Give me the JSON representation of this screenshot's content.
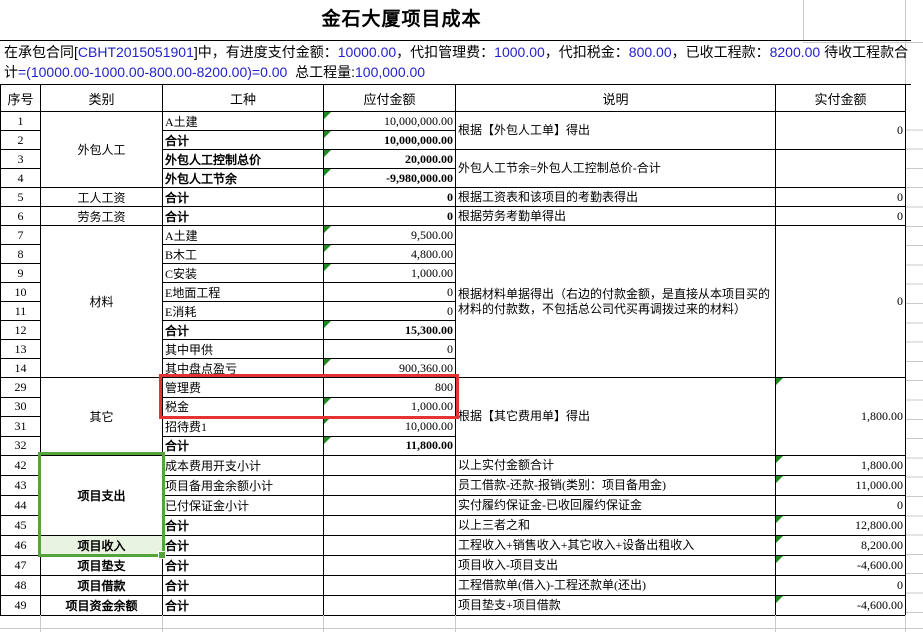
{
  "title": "金石大厦项目成本",
  "info": {
    "segments": [
      {
        "t": "在承包合同[",
        "c": "black"
      },
      {
        "t": "CBHT2015051901",
        "c": "blue"
      },
      {
        "t": "]中，有进度支付金额：",
        "c": "black"
      },
      {
        "t": "10000.00",
        "c": "blue"
      },
      {
        "t": "，代扣管理费：",
        "c": "black"
      },
      {
        "t": "1000.00",
        "c": "blue"
      },
      {
        "t": "，代扣税金：",
        "c": "black"
      },
      {
        "t": "800.00",
        "c": "blue"
      },
      {
        "t": "，已收工程款：",
        "c": "black"
      },
      {
        "t": "8200.00",
        "c": "blue"
      },
      {
        "t": " 待收工程款合计",
        "c": "black"
      },
      {
        "t": "=(10000.00-1000.00-800.00-8200.00)=0.00",
        "c": "blue"
      },
      {
        "t": "  总工程量:",
        "c": "black"
      },
      {
        "t": "100,000.00",
        "c": "blue"
      }
    ]
  },
  "table": {
    "headers": [
      "序号",
      "类别",
      "工种",
      "应付金额",
      "说明",
      "实付金额"
    ],
    "rows": [
      {
        "num": "1",
        "cat": {
          "t": "外包人工",
          "span": 4
        },
        "job": {
          "t": "A土建"
        },
        "amt": {
          "t": "10,000,000.00",
          "tri": true
        },
        "note": {
          "t": "根据【外包人工单】得出",
          "span": 2
        },
        "paid": {
          "t": "0",
          "span": 2
        }
      },
      {
        "num": "2",
        "job": {
          "t": "合计",
          "b": true
        },
        "amt": {
          "t": "10,000,000.00",
          "b": true,
          "tri": true
        }
      },
      {
        "num": "3",
        "job": {
          "t": "外包人工控制总价",
          "b": true
        },
        "amt": {
          "t": "20,000.00",
          "b": true,
          "tri": true
        },
        "note": {
          "t": "外包人工节余=外包人工控制总价-合计",
          "span": 2
        },
        "paid": {
          "t": "",
          "span": 2
        }
      },
      {
        "num": "4",
        "job": {
          "t": "外包人工节余",
          "b": true
        },
        "amt": {
          "t": "-9,980,000.00",
          "b": true,
          "tri": true
        }
      },
      {
        "num": "5",
        "cat": {
          "t": "工人工资"
        },
        "job": {
          "t": "合计",
          "b": true
        },
        "amt": {
          "t": "0",
          "b": true
        },
        "note": {
          "t": "根据工资表和该项目的考勤表得出"
        },
        "paid": {
          "t": "0"
        }
      },
      {
        "num": "6",
        "cat": {
          "t": "劳务工资"
        },
        "job": {
          "t": "合计",
          "b": true
        },
        "amt": {
          "t": "0",
          "b": true
        },
        "note": {
          "t": "根据劳务考勤单得出"
        },
        "paid": {
          "t": "0"
        }
      },
      {
        "num": "7",
        "cat": {
          "t": "材料",
          "span": 8
        },
        "job": {
          "t": "A土建"
        },
        "amt": {
          "t": "9,500.00",
          "tri": true
        },
        "note": {
          "t": "根据材料单据得出（右边的付款金额，是直接从本项目买的材料的付款数，不包括总公司代买再调拨过来的材料）",
          "span": 8
        },
        "paid": {
          "t": "0",
          "span": 8
        }
      },
      {
        "num": "8",
        "job": {
          "t": "B木工"
        },
        "amt": {
          "t": "4,800.00",
          "tri": true
        }
      },
      {
        "num": "9",
        "job": {
          "t": "C安装"
        },
        "amt": {
          "t": "1,000.00",
          "tri": true
        }
      },
      {
        "num": "10",
        "job": {
          "t": "E地面工程"
        },
        "amt": {
          "t": "0"
        }
      },
      {
        "num": "11",
        "job": {
          "t": "E消耗"
        },
        "amt": {
          "t": "0"
        }
      },
      {
        "num": "12",
        "job": {
          "t": "合计",
          "b": true
        },
        "amt": {
          "t": "15,300.00",
          "b": true,
          "tri": true
        }
      },
      {
        "num": "13",
        "job": {
          "t": "其中甲供"
        },
        "amt": {
          "t": "0"
        }
      },
      {
        "num": "14",
        "job": {
          "t": "其中盘点盈亏"
        },
        "amt": {
          "t": "900,360.00",
          "tri": true
        }
      },
      {
        "num": "29",
        "cat": {
          "t": "其它",
          "span": 4
        },
        "job": {
          "t": "管理费"
        },
        "amt": {
          "t": "800"
        },
        "note": {
          "t": "根据【其它费用单】得出",
          "span": 4
        },
        "paid": {
          "t": "1,800.00",
          "span": 4,
          "tri": true
        }
      },
      {
        "num": "30",
        "job": {
          "t": "税金"
        },
        "amt": {
          "t": "1,000.00",
          "tri": true
        }
      },
      {
        "num": "31",
        "job": {
          "t": "招待费1"
        },
        "amt": {
          "t": "10,000.00",
          "tri": true
        }
      },
      {
        "num": "32",
        "job": {
          "t": "合计",
          "b": true
        },
        "amt": {
          "t": "11,800.00",
          "b": true,
          "tri": true
        }
      },
      {
        "num": "42",
        "cat": {
          "t": "项目支出",
          "span": 4,
          "b": true
        },
        "job": {
          "t": "成本费用开支小计"
        },
        "amt": {
          "t": ""
        },
        "note": {
          "t": "以上实付金额合计"
        },
        "paid": {
          "t": "1,800.00",
          "tri": true
        }
      },
      {
        "num": "43",
        "job": {
          "t": "项目备用金余额小计"
        },
        "amt": {
          "t": ""
        },
        "note": {
          "t": "员工借款-还款-报销(类别：项目备用金)"
        },
        "paid": {
          "t": "11,000.00",
          "tri": true
        }
      },
      {
        "num": "44",
        "job": {
          "t": "已付保证金小计"
        },
        "amt": {
          "t": ""
        },
        "note": {
          "t": "实付履约保证金-已收回履约保证金"
        },
        "paid": {
          "t": "0"
        }
      },
      {
        "num": "45",
        "job": {
          "t": "合计",
          "b": true
        },
        "amt": {
          "t": ""
        },
        "note": {
          "t": "以上三者之和"
        },
        "paid": {
          "t": "12,800.00",
          "tri": true
        }
      },
      {
        "num": "46",
        "cat": {
          "t": "项目收入",
          "b": true,
          "fill": true
        },
        "job": {
          "t": "合计",
          "b": true
        },
        "amt": {
          "t": ""
        },
        "note": {
          "t": "工程收入+销售收入+其它收入+设备出租收入"
        },
        "paid": {
          "t": "8,200.00",
          "tri": true
        }
      },
      {
        "num": "47",
        "cat": {
          "t": "项目垫支",
          "b": true
        },
        "job": {
          "t": "合计",
          "b": true
        },
        "amt": {
          "t": ""
        },
        "note": {
          "t": "项目收入-项目支出"
        },
        "paid": {
          "t": "-4,600.00",
          "tri": true
        }
      },
      {
        "num": "48",
        "cat": {
          "t": "项目借款",
          "b": true
        },
        "job": {
          "t": "合计",
          "b": true
        },
        "amt": {
          "t": ""
        },
        "note": {
          "t": "工程借款单(借入)-工程还款单(还出)"
        },
        "paid": {
          "t": "0"
        }
      },
      {
        "num": "49",
        "cat": {
          "t": "项目资金余额",
          "b": true
        },
        "job": {
          "t": "合计",
          "b": true
        },
        "amt": {
          "t": ""
        },
        "note": {
          "t": "项目垫支+项目借款"
        },
        "paid": {
          "t": "-4,600.00",
          "tri": true
        }
      }
    ]
  },
  "colors": {
    "info_number_blue": "#2222cc",
    "annotation_red": "#e53333",
    "selection_green": "#55a33c",
    "selected_row_fill": "#e9f3e1",
    "formula_flag_green": "#1e8a1e",
    "grid_line_gray": "#c9c9c9"
  }
}
